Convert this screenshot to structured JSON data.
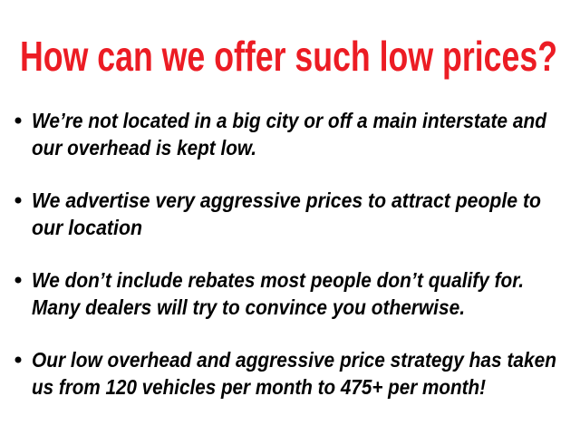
{
  "title": "How can we offer such low prices?",
  "bullets": [
    {
      "lines": [
        "We’re not located in a big city or off a main interstate and",
        "our overhead is kept low."
      ]
    },
    {
      "lines": [
        "We advertise very aggressive prices to attract people to",
        "our location"
      ]
    },
    {
      "lines": [
        "We don’t include rebates most people don’t qualify for.",
        "Many dealers will try to convince you otherwise."
      ]
    },
    {
      "lines": [
        "Our low overhead and aggressive price strategy has taken",
        "us from 120 vehicles per month to 475+ per month!"
      ]
    }
  ]
}
